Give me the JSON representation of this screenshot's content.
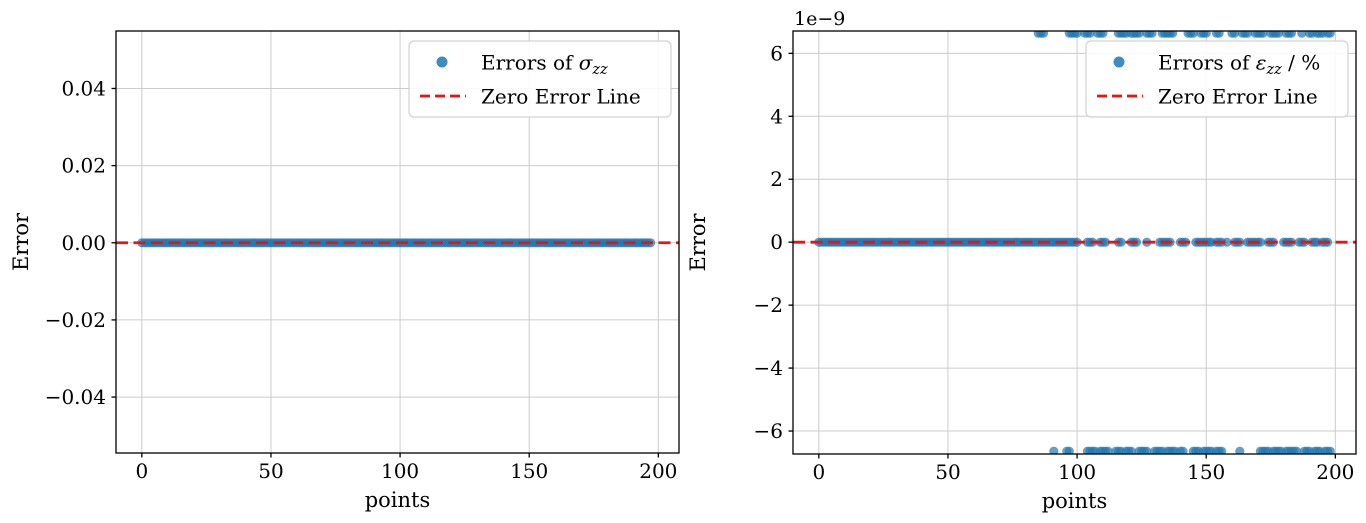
{
  "figure": {
    "background": "#ffffff"
  },
  "colors": {
    "scatter": "#1f77b4",
    "zero_line": "#ee1111",
    "grid": "#cccccc",
    "spine": "#000000",
    "text": "#000000",
    "legend_border": "#d2d2d2",
    "legend_background": "#ffffff"
  },
  "chart_data": [
    {
      "type": "scatter",
      "name": "sigma-zz-errors",
      "title": "",
      "xlabel": "points",
      "ylabel": "Error",
      "offset_text": "",
      "xlim": [
        -10,
        208
      ],
      "ylim": [
        -0.0545,
        0.0549
      ],
      "xticks": [
        0,
        50,
        100,
        150,
        200
      ],
      "xtick_labels": [
        "0",
        "50",
        "100",
        "150",
        "200"
      ],
      "yticks": [
        0.04,
        0.02,
        0,
        -0.02,
        -0.04
      ],
      "ytick_labels": [
        "0.04",
        "0.02",
        "0.00",
        "−0.02",
        "−0.04"
      ],
      "grid": true,
      "series": [
        {
          "name": "errors-of-sigma-zz",
          "marker": "o",
          "color": "#1f77b4",
          "opacity": 0.7,
          "bands": [
            {
              "y": 0,
              "x_segments": [
                [
                  0,
                  197
                ]
              ]
            }
          ]
        }
      ],
      "zero_line": {
        "y": 0,
        "color": "#ee1111",
        "style": "dashed"
      },
      "legend": {
        "position": "upper right",
        "entries": [
          {
            "type": "marker",
            "label": {
              "prefix": "Errors of ",
              "symbol": "σ",
              "subscript": "zz",
              "suffix": ""
            }
          },
          {
            "type": "dashed-line",
            "label": {
              "prefix": "Zero Error Line",
              "symbol": "",
              "subscript": "",
              "suffix": ""
            }
          }
        ]
      }
    },
    {
      "type": "scatter",
      "name": "epsilon-zz-errors",
      "title": "",
      "xlabel": "points",
      "ylabel": "Error",
      "offset_text": "1e−9",
      "xlim": [
        -10,
        208
      ],
      "ylim": [
        -6.73e-09,
        6.71e-09
      ],
      "xticks": [
        0,
        50,
        100,
        150,
        200
      ],
      "xtick_labels": [
        "0",
        "50",
        "100",
        "150",
        "200"
      ],
      "yticks": [
        6e-09,
        4e-09,
        2e-09,
        0,
        -2e-09,
        -4e-09,
        -6e-09
      ],
      "ytick_labels": [
        "6",
        "4",
        "2",
        "0",
        "−2",
        "−4",
        "−6"
      ],
      "grid": true,
      "series": [
        {
          "name": "errors-of-epsilon-zz",
          "marker": "o",
          "color": "#1f77b4",
          "opacity": 0.7,
          "bands": [
            {
              "y": 0,
              "x_segments": [
                [
                  0,
                  100
                ],
                [
                  104,
                  106
                ],
                [
                  109,
                  111
                ],
                [
                  116,
                  117
                ],
                [
                  121,
                  123
                ],
                [
                  127,
                  127
                ],
                [
                  132,
                  136
                ],
                [
                  140,
                  142
                ],
                [
                  146,
                  152
                ],
                [
                  154,
                  156
                ],
                [
                  158,
                  158
                ],
                [
                  161,
                  163
                ],
                [
                  166,
                  171
                ],
                [
                  174,
                  176
                ],
                [
                  180,
                  183
                ],
                [
                  186,
                  188
                ],
                [
                  191,
                  193
                ],
                [
                  195,
                  197
                ]
              ]
            },
            {
              "y": 6.64e-09,
              "x_segments": [
                [
                  85,
                  87
                ],
                [
                  97,
                  100
                ],
                [
                  103,
                  105
                ],
                [
                  108,
                  110
                ],
                [
                  116,
                  119
                ],
                [
                  121,
                  124
                ],
                [
                  127,
                  129
                ],
                [
                  133,
                  137
                ],
                [
                  143,
                  145
                ],
                [
                  148,
                  150
                ],
                [
                  154,
                  155
                ],
                [
                  160,
                  161
                ],
                [
                  164,
                  166
                ],
                [
                  169,
                  172
                ],
                [
                  175,
                  178
                ],
                [
                  181,
                  183
                ],
                [
                  187,
                  187
                ],
                [
                  190,
                  191
                ],
                [
                  193,
                  195
                ],
                [
                  197,
                  198
                ]
              ]
            },
            {
              "y": -6.64e-09,
              "x_segments": [
                [
                  91,
                  91
                ],
                [
                  96,
                  97
                ],
                [
                  104,
                  107
                ],
                [
                  109,
                  112
                ],
                [
                  115,
                  117
                ],
                [
                  119,
                  121
                ],
                [
                  124,
                  127
                ],
                [
                  130,
                  133
                ],
                [
                  135,
                  138
                ],
                [
                  140,
                  141
                ],
                [
                  145,
                  147
                ],
                [
                  149,
                  152
                ],
                [
                  154,
                  156
                ],
                [
                  163,
                  163
                ],
                [
                  171,
                  174
                ],
                [
                  176,
                  179
                ],
                [
                  181,
                  185
                ],
                [
                  188,
                  190
                ],
                [
                  192,
                  194
                ],
                [
                  196,
                  198
                ]
              ]
            }
          ]
        }
      ],
      "zero_line": {
        "y": 0,
        "color": "#ee1111",
        "style": "dashed"
      },
      "legend": {
        "position": "upper right",
        "entries": [
          {
            "type": "marker",
            "label": {
              "prefix": "Errors of ",
              "symbol": "ε",
              "subscript": "zz",
              "suffix": " / %"
            }
          },
          {
            "type": "dashed-line",
            "label": {
              "prefix": "Zero Error Line",
              "symbol": "",
              "subscript": "",
              "suffix": ""
            }
          }
        ]
      }
    }
  ]
}
